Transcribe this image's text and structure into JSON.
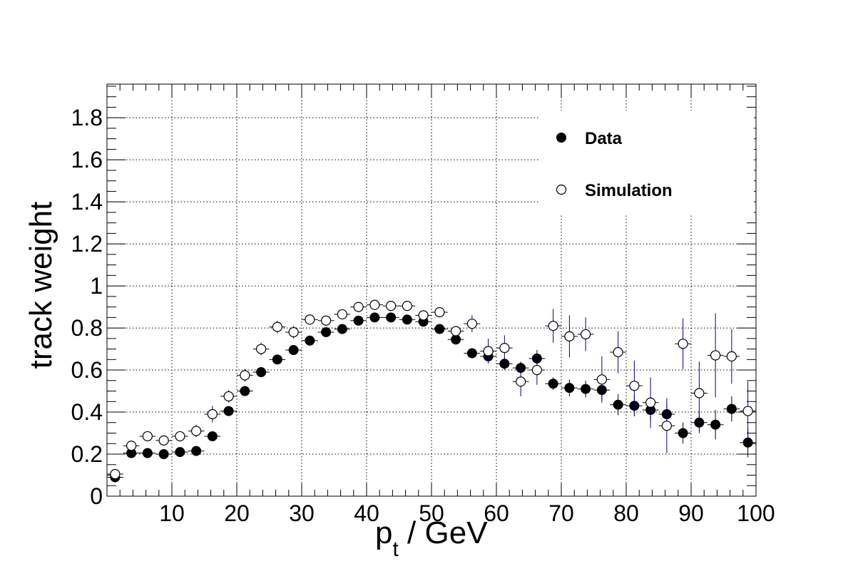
{
  "chart_data": {
    "type": "scatter",
    "title": "",
    "xlabel_main": "p",
    "xlabel_sub": "t",
    "xlabel_rest": " / GeV",
    "ylabel": "track weight",
    "xlim": [
      0,
      100
    ],
    "ylim": [
      0,
      1.96
    ],
    "x_ticks": [
      10,
      20,
      30,
      40,
      50,
      60,
      70,
      80,
      90,
      100
    ],
    "x_tick_labels": [
      "10",
      "20",
      "30",
      "40",
      "50",
      "60",
      "70",
      "80",
      "90",
      "100"
    ],
    "y_ticks": [
      0,
      0.2,
      0.4,
      0.6,
      0.8,
      1,
      1.2,
      1.4,
      1.6,
      1.8
    ],
    "y_tick_labels": [
      "0",
      "0.2",
      "0.4",
      "0.6",
      "0.8",
      "1",
      "1.2",
      "1.4",
      "1.6",
      "1.8"
    ],
    "grid": true,
    "legend_position": "top-right",
    "bin_width": 2.5,
    "series": [
      {
        "name": "Data",
        "marker": "filled-circle",
        "color": "#000000",
        "x": [
          1.25,
          3.75,
          6.25,
          8.75,
          11.25,
          13.75,
          16.25,
          18.75,
          21.25,
          23.75,
          26.25,
          28.75,
          31.25,
          33.75,
          36.25,
          38.75,
          41.25,
          43.75,
          46.25,
          48.75,
          51.25,
          53.75,
          56.25,
          58.75,
          61.25,
          63.75,
          66.25,
          68.75,
          71.25,
          73.75,
          76.25,
          78.75,
          81.25,
          83.75,
          86.25,
          88.75,
          91.25,
          93.75,
          96.25,
          98.75
        ],
        "y": [
          0.09,
          0.205,
          0.205,
          0.2,
          0.21,
          0.215,
          0.285,
          0.405,
          0.5,
          0.59,
          0.65,
          0.695,
          0.74,
          0.78,
          0.795,
          0.835,
          0.85,
          0.85,
          0.84,
          0.83,
          0.795,
          0.745,
          0.68,
          0.665,
          0.63,
          0.61,
          0.655,
          0.535,
          0.515,
          0.51,
          0.505,
          0.435,
          0.43,
          0.41,
          0.39,
          0.3,
          0.35,
          0.34,
          0.415,
          0.255
        ],
        "err": [
          0.01,
          0.01,
          0.01,
          0.01,
          0.01,
          0.01,
          0.01,
          0.01,
          0.01,
          0.01,
          0.01,
          0.01,
          0.01,
          0.01,
          0.01,
          0.01,
          0.01,
          0.01,
          0.01,
          0.01,
          0.01,
          0.01,
          0.01,
          0.02,
          0.03,
          0.03,
          0.04,
          0.03,
          0.04,
          0.04,
          0.05,
          0.05,
          0.05,
          0.05,
          0.05,
          0.05,
          0.05,
          0.07,
          0.06,
          0.07
        ]
      },
      {
        "name": "Simulation",
        "marker": "open-circle",
        "color": "#000000",
        "err_color": "#000080",
        "x": [
          1.25,
          3.75,
          6.25,
          8.75,
          11.25,
          13.75,
          16.25,
          18.75,
          21.25,
          23.75,
          26.25,
          28.75,
          31.25,
          33.75,
          36.25,
          38.75,
          41.25,
          43.75,
          46.25,
          48.75,
          51.25,
          53.75,
          56.25,
          58.75,
          61.25,
          63.75,
          66.25,
          68.75,
          71.25,
          73.75,
          76.25,
          78.75,
          81.25,
          83.75,
          86.25,
          88.75,
          91.25,
          93.75,
          96.25,
          98.75
        ],
        "y": [
          0.105,
          0.24,
          0.285,
          0.265,
          0.285,
          0.31,
          0.39,
          0.475,
          0.575,
          0.7,
          0.805,
          0.78,
          0.84,
          0.835,
          0.865,
          0.9,
          0.91,
          0.905,
          0.905,
          0.86,
          0.875,
          0.785,
          0.82,
          0.69,
          0.705,
          0.545,
          0.6,
          0.81,
          0.76,
          0.77,
          0.555,
          0.685,
          0.525,
          0.445,
          0.335,
          0.725,
          0.49,
          0.67,
          0.665,
          0.405
        ],
        "err": [
          0.01,
          0.02,
          0.02,
          0.02,
          0.02,
          0.03,
          0.04,
          0.03,
          0.03,
          0.03,
          0.03,
          0.03,
          0.02,
          0.02,
          0.02,
          0.02,
          0.02,
          0.02,
          0.02,
          0.02,
          0.02,
          0.02,
          0.04,
          0.06,
          0.06,
          0.07,
          0.07,
          0.08,
          0.1,
          0.08,
          0.11,
          0.1,
          0.12,
          0.12,
          0.13,
          0.12,
          0.15,
          0.2,
          0.13,
          0.14
        ]
      }
    ]
  }
}
